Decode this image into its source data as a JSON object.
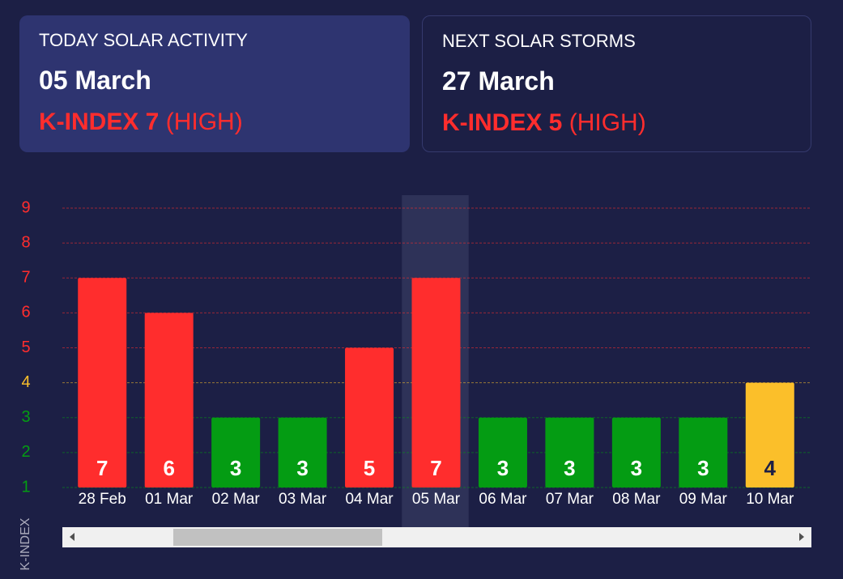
{
  "cards": [
    {
      "heading": "TODAY SOLAR ACTIVITY",
      "date": "05 March",
      "index": "K-INDEX 7",
      "level": "(HIGH)"
    },
    {
      "heading": "NEXT SOLAR STORMS",
      "date": "27 March",
      "index": "K-INDEX 5",
      "level": "(HIGH)"
    }
  ],
  "chart_data": {
    "type": "bar",
    "y_label": "K-INDEX",
    "categories": [
      "28 Feb",
      "01 Mar",
      "02 Mar",
      "03 Mar",
      "04 Mar",
      "05 Mar",
      "06 Mar",
      "07 Mar",
      "08 Mar",
      "09 Mar",
      "10 Mar"
    ],
    "values": [
      7,
      6,
      3,
      3,
      5,
      7,
      3,
      3,
      3,
      3,
      4
    ],
    "colors": [
      "#ff2d2d",
      "#ff2d2d",
      "#049c13",
      "#049c13",
      "#ff2d2d",
      "#ff2d2d",
      "#049c13",
      "#049c13",
      "#049c13",
      "#049c13",
      "#fbbf2a"
    ],
    "ylim": [
      1,
      9
    ],
    "yticks": [
      1,
      2,
      3,
      4,
      5,
      6,
      7,
      8,
      9
    ],
    "ytick_colors": [
      "#049c13",
      "#049c13",
      "#049c13",
      "#fbbf2a",
      "#ff2d2d",
      "#ff2d2d",
      "#ff2d2d",
      "#ff2d2d",
      "#ff2d2d"
    ],
    "grid": true,
    "highlight_index": 5
  }
}
